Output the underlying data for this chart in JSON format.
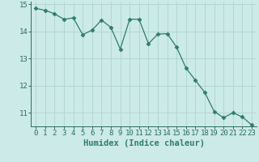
{
  "x": [
    0,
    1,
    2,
    3,
    4,
    5,
    6,
    7,
    8,
    9,
    10,
    11,
    12,
    13,
    14,
    15,
    16,
    17,
    18,
    19,
    20,
    21,
    22,
    23
  ],
  "y": [
    14.85,
    14.78,
    14.65,
    14.45,
    14.5,
    13.88,
    14.05,
    14.42,
    14.15,
    13.35,
    14.45,
    14.45,
    13.55,
    13.9,
    13.92,
    13.42,
    12.65,
    12.2,
    11.75,
    11.05,
    10.82,
    11.0,
    10.85,
    10.55
  ],
  "line_color": "#2d7d6e",
  "marker": "D",
  "marker_size": 2.5,
  "bg_color": "#cceae7",
  "grid_color": "#afd4d0",
  "xlabel": "Humidex (Indice chaleur)",
  "xlim": [
    -0.5,
    23.5
  ],
  "ylim": [
    10.5,
    15.1
  ],
  "yticks": [
    11,
    12,
    13,
    14,
    15
  ],
  "xticks": [
    0,
    1,
    2,
    3,
    4,
    5,
    6,
    7,
    8,
    9,
    10,
    11,
    12,
    13,
    14,
    15,
    16,
    17,
    18,
    19,
    20,
    21,
    22,
    23
  ],
  "xlabel_fontsize": 7.5,
  "tick_fontsize": 6.5,
  "spine_color": "#4a8a80",
  "axis_color": "#2d6b62"
}
